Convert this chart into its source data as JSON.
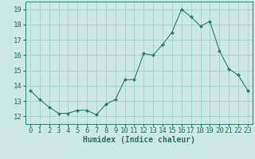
{
  "x": [
    0,
    1,
    2,
    3,
    4,
    5,
    6,
    7,
    8,
    9,
    10,
    11,
    12,
    13,
    14,
    15,
    16,
    17,
    18,
    19,
    20,
    21,
    22,
    23
  ],
  "y": [
    13.7,
    13.1,
    12.6,
    12.2,
    12.2,
    12.4,
    12.4,
    12.1,
    12.8,
    13.1,
    14.4,
    14.4,
    16.1,
    16.0,
    16.7,
    17.5,
    19.0,
    18.5,
    17.9,
    18.2,
    16.3,
    15.1,
    14.7,
    13.7
  ],
  "line_color": "#2e7d6e",
  "marker": "D",
  "marker_size": 2.2,
  "bg_color": "#cce9e5",
  "grid_color": "#a8d5d0",
  "xlabel": "Humidex (Indice chaleur)",
  "ylim": [
    11.5,
    19.5
  ],
  "xlim": [
    -0.5,
    23.5
  ],
  "yticks": [
    12,
    13,
    14,
    15,
    16,
    17,
    18,
    19
  ],
  "xticks": [
    0,
    1,
    2,
    3,
    4,
    5,
    6,
    7,
    8,
    9,
    10,
    11,
    12,
    13,
    14,
    15,
    16,
    17,
    18,
    19,
    20,
    21,
    22,
    23
  ],
  "xlabel_fontsize": 7,
  "tick_fontsize": 6.5,
  "axis_label_color": "#2e6e60"
}
